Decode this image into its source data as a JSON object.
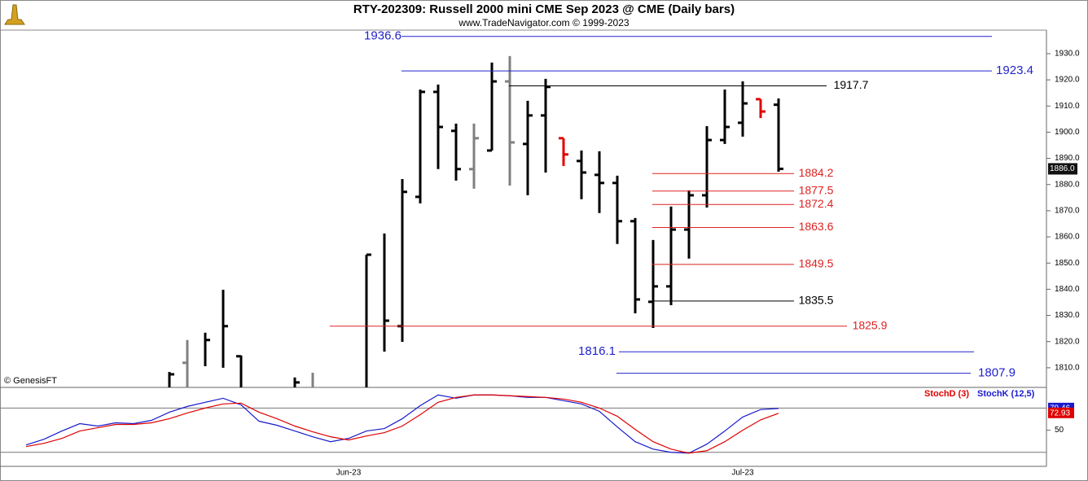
{
  "chart_data": [
    {
      "type": "ohlc",
      "title": "RTY-202309:  Russell 2000 mini CME Sep 2023 @ CME  (Daily bars)",
      "subtitle": "www.TradeNavigator.com © 1999-2023",
      "watermark": "© GenesisFT",
      "categories": [
        null,
        null,
        null,
        null,
        null,
        null,
        null,
        null,
        null,
        null,
        null,
        null,
        null,
        null,
        null,
        null,
        null,
        null,
        "Jun-23",
        null,
        null,
        null,
        null,
        null,
        null,
        null,
        null,
        null,
        null,
        null,
        null,
        null,
        null,
        null,
        null,
        null,
        null,
        null,
        null,
        null,
        "Jul-23",
        null,
        null
      ],
      "open": [
        null,
        null,
        null,
        null,
        null,
        null,
        null,
        null,
        null,
        1811.9,
        null,
        null,
        1814.4,
        null,
        null,
        null,
        null,
        null,
        null,
        null,
        null,
        1825.9,
        1875.3,
        1915.4,
        1900.5,
        1885.9,
        1893,
        1919.4,
        1895.5,
        1906.4,
        1897.7,
        1889,
        1883.7,
        1880.6,
        1866,
        1835.2,
        1841.1,
        1862.8,
        1875.9,
        1897,
        1903.6,
        1912.6,
        1910.5
      ],
      "high": [
        null,
        null,
        null,
        null,
        null,
        null,
        null,
        null,
        1808.4,
        1820.6,
        1823.4,
        1839.8,
        1814.7,
        null,
        null,
        1806.3,
        1808.1,
        null,
        null,
        1853.2,
        1861.3,
        1882.1,
        1916.3,
        1918.2,
        1903.3,
        1903.3,
        1926.6,
        1929.1,
        1912,
        1920.4,
        1897.7,
        1893,
        1892.7,
        1883.4,
        1867.2,
        1858.8,
        1871.6,
        1877.8,
        1902.3,
        1916.3,
        1919.4,
        1912.6,
        1912.9
      ],
      "low": [
        null,
        null,
        null,
        null,
        null,
        null,
        null,
        null,
        1800,
        1800,
        1810.6,
        1810,
        1802.5,
        null,
        null,
        1800,
        1800,
        null,
        null,
        1802.5,
        1816.2,
        1819.9,
        1872.8,
        1885.9,
        1881.5,
        1878.4,
        1893,
        1879.6,
        1875.9,
        1884.6,
        1887.1,
        1874.4,
        1869.1,
        1857.3,
        1830.8,
        1825.2,
        1833.9,
        1851.7,
        1871.2,
        1895.5,
        1898.3,
        1905.4,
        1884.9
      ],
      "close": [
        null,
        null,
        null,
        null,
        null,
        null,
        null,
        null,
        1807.5,
        null,
        1820.6,
        1825.9,
        null,
        null,
        null,
        1804.4,
        null,
        null,
        null,
        1853.2,
        1828,
        1877.2,
        1915.4,
        1902,
        1885.9,
        1897.7,
        1919.4,
        1896.1,
        1906.4,
        1917.3,
        1891.5,
        1884.6,
        1880.6,
        1866,
        1836.1,
        1841.1,
        1862.8,
        1875.9,
        1897,
        1902,
        1911,
        1907.9,
        1886
      ],
      "colors": [
        null,
        null,
        null,
        null,
        null,
        null,
        null,
        null,
        "#000000",
        "#808080",
        "#000000",
        "#000000",
        "#000000",
        null,
        null,
        "#000000",
        "#808080",
        null,
        null,
        "#000000",
        "#000000",
        "#000000",
        "#000000",
        "#000000",
        "#000000",
        "#808080",
        "#000000",
        "#808080",
        "#000000",
        "#000000",
        "#e00000",
        "#000000",
        "#000000",
        "#000000",
        "#000000",
        "#000000",
        "#000000",
        "#000000",
        "#000000",
        "#000000",
        "#000000",
        "#e00000",
        "#000000"
      ],
      "levels": [
        {
          "value": 1936.6,
          "color": "#2222cc"
        },
        {
          "value": 1923.4,
          "color": "#2222cc"
        },
        {
          "value": 1917.7,
          "color": "#000000"
        },
        {
          "value": 1884.2,
          "color": "#dd2222"
        },
        {
          "value": 1877.5,
          "color": "#dd2222"
        },
        {
          "value": 1872.4,
          "color": "#dd2222"
        },
        {
          "value": 1863.6,
          "color": "#dd2222"
        },
        {
          "value": 1849.5,
          "color": "#dd2222"
        },
        {
          "value": 1835.5,
          "color": "#000000"
        },
        {
          "value": 1825.9,
          "color": "#dd2222"
        },
        {
          "value": 1816.1,
          "color": "#2222cc"
        },
        {
          "value": 1807.9,
          "color": "#2222cc"
        }
      ],
      "last_price": {
        "value": 1886,
        "label": "1886.0"
      },
      "ylim": [
        1802.5,
        1939
      ],
      "yticks": [
        {
          "value": 1810,
          "label": "1810.0"
        },
        {
          "value": 1820,
          "label": "1820.0"
        },
        {
          "value": 1830,
          "label": "1830.0"
        },
        {
          "value": 1840,
          "label": "1840.0"
        },
        {
          "value": 1850,
          "label": "1850.0"
        },
        {
          "value": 1860,
          "label": "1860.0"
        },
        {
          "value": 1870,
          "label": "1870.0"
        },
        {
          "value": 1880,
          "label": "1880.0"
        },
        {
          "value": 1890,
          "label": "1890.0"
        },
        {
          "value": 1900,
          "label": "1900.0"
        },
        {
          "value": 1910,
          "label": "1910.0"
        },
        {
          "value": 1920,
          "label": "1920.0"
        },
        {
          "value": 1930,
          "label": "1930.0"
        }
      ]
    },
    {
      "type": "line",
      "series": [
        {
          "name": "StochD (3)",
          "color": "#e00000",
          "values": [
            27.8,
            32.2,
            38.9,
            48.9,
            53.3,
            57.8,
            57.8,
            60,
            65.6,
            73.3,
            80,
            85.6,
            86.7,
            74.4,
            65.6,
            55.6,
            47.8,
            41.1,
            36.7,
            42.2,
            46.7,
            55.6,
            71.1,
            87.8,
            94.4,
            97.8,
            97.8,
            96.7,
            95.6,
            94.4,
            92.2,
            87.8,
            80,
            68.9,
            51.1,
            34.4,
            24.4,
            18.9,
            22.2,
            34.4,
            50,
            64,
            72.93
          ]
        },
        {
          "name": "StochK (12,5)",
          "color": "#1a1acc",
          "values": [
            30,
            37.8,
            48.9,
            58.9,
            55.6,
            60,
            58.9,
            63.3,
            74.4,
            82.2,
            87.8,
            93.3,
            84.4,
            62.2,
            56.7,
            48.9,
            41.1,
            34.4,
            38.9,
            48.9,
            52.2,
            65.6,
            83.3,
            97.8,
            93.3,
            97.8,
            97.8,
            96.7,
            94.4,
            94.4,
            90,
            85.6,
            75.6,
            54.4,
            34.4,
            24.4,
            20,
            18.9,
            31.1,
            48.9,
            67.8,
            78,
            79.46
          ]
        }
      ],
      "levels": [
        80,
        20
      ],
      "ylim": [
        1,
        108
      ],
      "yticks": [
        50
      ]
    }
  ]
}
